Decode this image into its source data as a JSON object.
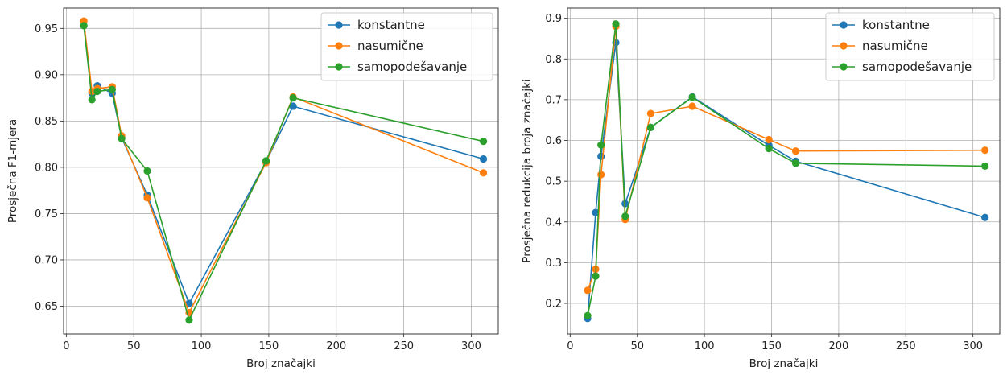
{
  "chart_data": [
    {
      "type": "line",
      "title": "",
      "xlabel": "Broj značajki",
      "ylabel": "Prosječna F1-mjera",
      "xlim": [
        -2,
        320
      ],
      "ylim": [
        0.62,
        0.972
      ],
      "xticks": [
        0,
        50,
        100,
        150,
        200,
        250,
        300
      ],
      "yticks": [
        0.65,
        0.7,
        0.75,
        0.8,
        0.85,
        0.9,
        0.95
      ],
      "ytick_labels": [
        "0.65",
        "0.70",
        "0.75",
        "0.80",
        "0.85",
        "0.90",
        "0.95"
      ],
      "grid": true,
      "legend_position": "top-right",
      "series": [
        {
          "name": "konstantne",
          "color": "#1f77b4",
          "x": [
            13,
            19,
            23,
            34,
            41,
            60,
            91,
            148,
            168,
            309
          ],
          "y": [
            0.953,
            0.88,
            0.888,
            0.88,
            0.832,
            0.77,
            0.653,
            0.806,
            0.866,
            0.809
          ]
        },
        {
          "name": "nasumične",
          "color": "#ff7f0e",
          "x": [
            13,
            19,
            23,
            34,
            41,
            60,
            91,
            148,
            168,
            309
          ],
          "y": [
            0.958,
            0.882,
            0.885,
            0.887,
            0.834,
            0.767,
            0.643,
            0.805,
            0.876,
            0.794
          ]
        },
        {
          "name": "samopodešavanje",
          "color": "#2ca02c",
          "x": [
            13,
            19,
            23,
            34,
            41,
            60,
            91,
            148,
            168,
            309
          ],
          "y": [
            0.953,
            0.873,
            0.882,
            0.884,
            0.831,
            0.796,
            0.635,
            0.807,
            0.875,
            0.828
          ]
        }
      ]
    },
    {
      "type": "line",
      "title": "",
      "xlabel": "Broj značajki",
      "ylabel": "Prosječna redukcija broja značajki",
      "xlim": [
        -2,
        320
      ],
      "ylim": [
        0.125,
        0.925
      ],
      "xticks": [
        0,
        50,
        100,
        150,
        200,
        250,
        300
      ],
      "yticks": [
        0.2,
        0.3,
        0.4,
        0.5,
        0.6,
        0.7,
        0.8,
        0.9
      ],
      "ytick_labels": [
        "0.2",
        "0.3",
        "0.4",
        "0.5",
        "0.6",
        "0.7",
        "0.8",
        "0.9"
      ],
      "grid": true,
      "legend_position": "top-right",
      "series": [
        {
          "name": "konstantne",
          "color": "#1f77b4",
          "x": [
            13,
            19,
            23,
            34,
            41,
            60,
            91,
            148,
            168,
            309
          ],
          "y": [
            0.163,
            0.423,
            0.561,
            0.84,
            0.445,
            0.632,
            0.707,
            0.588,
            0.549,
            0.411
          ]
        },
        {
          "name": "nasumične",
          "color": "#ff7f0e",
          "x": [
            13,
            19,
            23,
            34,
            41,
            60,
            91,
            148,
            168,
            309
          ],
          "y": [
            0.232,
            0.284,
            0.516,
            0.88,
            0.406,
            0.666,
            0.684,
            0.602,
            0.574,
            0.576
          ]
        },
        {
          "name": "samopodešavanje",
          "color": "#2ca02c",
          "x": [
            13,
            19,
            23,
            34,
            41,
            60,
            91,
            148,
            168,
            309
          ],
          "y": [
            0.17,
            0.267,
            0.589,
            0.886,
            0.414,
            0.632,
            0.706,
            0.58,
            0.544,
            0.537
          ]
        }
      ]
    }
  ]
}
